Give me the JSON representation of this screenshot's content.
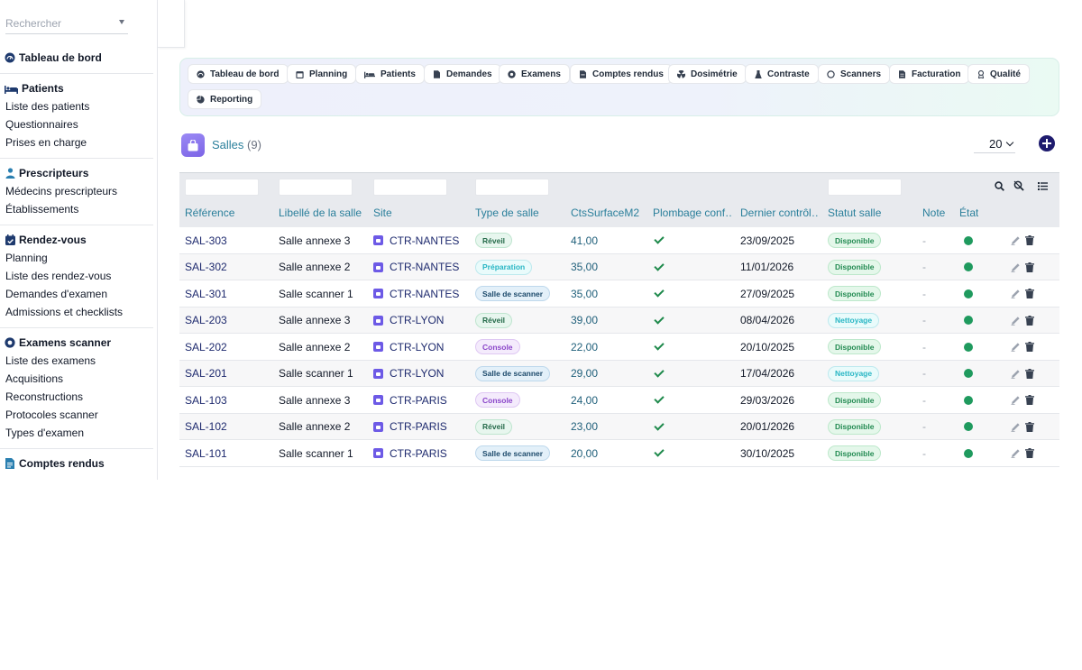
{
  "sidebar": {
    "search_placeholder": "Rechercher",
    "dashboard": "Tableau de bord",
    "sections": [
      {
        "title": "Patients",
        "items": [
          "Liste des patients",
          "Questionnaires",
          "Prises en charge"
        ]
      },
      {
        "title": "Prescripteurs",
        "items": [
          "Médecins prescripteurs",
          "Établissements"
        ]
      },
      {
        "title": "Rendez-vous",
        "items": [
          "Planning",
          "Liste des rendez-vous",
          "Demandes d'examen",
          "Admissions et checklists"
        ]
      },
      {
        "title": "Examens scanner",
        "items": [
          "Liste des examens",
          "Acquisitions",
          "Reconstructions",
          "Protocoles scanner",
          "Types d'examen"
        ]
      },
      {
        "title": "Comptes rendus",
        "items": []
      }
    ]
  },
  "topnav": [
    "Tableau de bord",
    "Planning",
    "Patients",
    "Demandes",
    "Examens",
    "Comptes rendus",
    "Dosimétrie",
    "Contraste",
    "Scanners",
    "Facturation",
    "Qualité",
    "Reporting"
  ],
  "page": {
    "title": "Salles",
    "count": "(9)",
    "page_size": "20"
  },
  "table": {
    "columns": [
      "Référence",
      "Libellé de la salle",
      "Site",
      "Type de salle",
      "CtsSurfaceM2",
      "Plombage conf…",
      "Dernier contrôl…",
      "Statut salle",
      "Note",
      "État"
    ],
    "rows": [
      {
        "ref": "SAL-303",
        "label": "Salle annexe 3",
        "site": "CTR-NANTES",
        "type": "Réveil",
        "type_kind": "reveil",
        "surface": "41,00",
        "date": "23/09/2025",
        "status": "Disponible",
        "status_kind": "dispo",
        "note": "-"
      },
      {
        "ref": "SAL-302",
        "label": "Salle annexe 2",
        "site": "CTR-NANTES",
        "type": "Préparation",
        "type_kind": "prep",
        "surface": "35,00",
        "date": "11/01/2026",
        "status": "Disponible",
        "status_kind": "dispo",
        "note": "-"
      },
      {
        "ref": "SAL-301",
        "label": "Salle scanner 1",
        "site": "CTR-NANTES",
        "type": "Salle de scanner",
        "type_kind": "scanner",
        "surface": "35,00",
        "date": "27/09/2025",
        "status": "Disponible",
        "status_kind": "dispo",
        "note": "-"
      },
      {
        "ref": "SAL-203",
        "label": "Salle annexe 3",
        "site": "CTR-LYON",
        "type": "Réveil",
        "type_kind": "reveil",
        "surface": "39,00",
        "date": "08/04/2026",
        "status": "Nettoyage",
        "status_kind": "nett",
        "note": "-"
      },
      {
        "ref": "SAL-202",
        "label": "Salle annexe 2",
        "site": "CTR-LYON",
        "type": "Console",
        "type_kind": "console",
        "surface": "22,00",
        "date": "20/10/2025",
        "status": "Disponible",
        "status_kind": "dispo",
        "note": "-"
      },
      {
        "ref": "SAL-201",
        "label": "Salle scanner 1",
        "site": "CTR-LYON",
        "type": "Salle de scanner",
        "type_kind": "scanner",
        "surface": "29,00",
        "date": "17/04/2026",
        "status": "Nettoyage",
        "status_kind": "nett",
        "note": "-"
      },
      {
        "ref": "SAL-103",
        "label": "Salle annexe 3",
        "site": "CTR-PARIS",
        "type": "Console",
        "type_kind": "console",
        "surface": "24,00",
        "date": "29/03/2026",
        "status": "Disponible",
        "status_kind": "dispo",
        "note": "-"
      },
      {
        "ref": "SAL-102",
        "label": "Salle annexe 2",
        "site": "CTR-PARIS",
        "type": "Réveil",
        "type_kind": "reveil",
        "surface": "23,00",
        "date": "20/01/2026",
        "status": "Disponible",
        "status_kind": "dispo",
        "note": "-"
      },
      {
        "ref": "SAL-101",
        "label": "Salle scanner 1",
        "site": "CTR-PARIS",
        "type": "Salle de scanner",
        "type_kind": "scanner",
        "surface": "20,00",
        "date": "30/10/2025",
        "status": "Disponible",
        "status_kind": "dispo",
        "note": "-"
      }
    ]
  },
  "colors": {
    "accent": "#2a7f9b",
    "link": "#1e2a6e",
    "active_dot": "#1f9a5e",
    "add_button": "#1e1b6e"
  }
}
